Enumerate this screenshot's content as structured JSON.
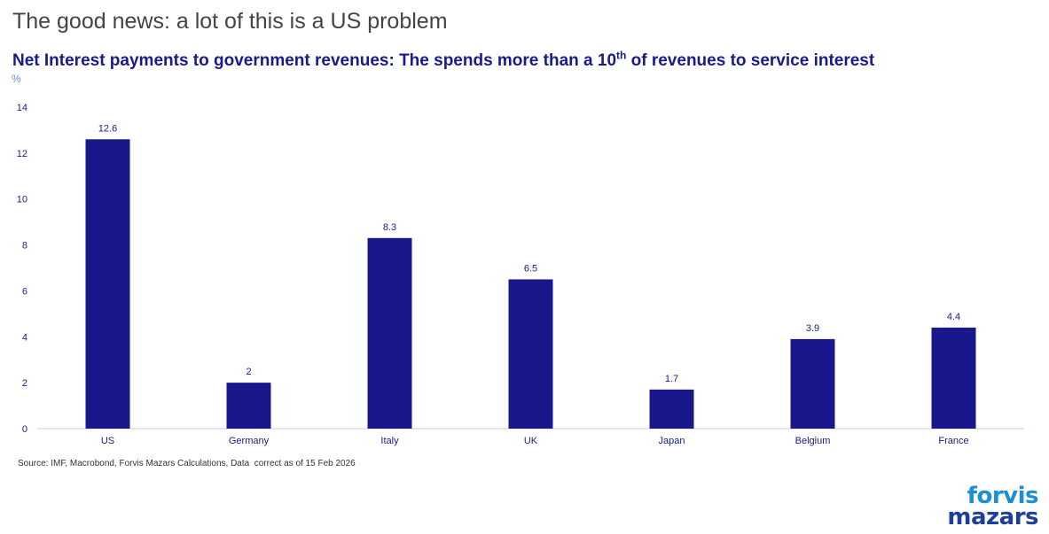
{
  "slide": {
    "title": "The good news: a lot of this is a US problem"
  },
  "chart_data": {
    "type": "bar",
    "title_part1": "Net Interest payments to government revenues: The spends more than a 10",
    "title_sup": "th",
    "title_part2": " of revenues to service interest",
    "ylabel": "%",
    "xlabel": "",
    "categories": [
      "US",
      "Germany",
      "Italy",
      "UK",
      "Japan",
      "Belgium",
      "France"
    ],
    "values": [
      12.6,
      2,
      8.3,
      6.5,
      1.7,
      3.9,
      4.4
    ],
    "data_labels": [
      "12.6",
      "2",
      "8.3",
      "6.5",
      "1.7",
      "3.9",
      "4.4"
    ],
    "ylim": [
      0,
      14
    ],
    "yticks": [
      0,
      2,
      4,
      6,
      8,
      10,
      12,
      14
    ],
    "bar_color": "#18188c",
    "grid": false
  },
  "footer": {
    "source": "Source: IMF, Macrobond, Forvis Mazars Calculations, Data  correct as of 15 Feb 2026",
    "logo_line1": "forvis",
    "logo_line2": "mazars"
  }
}
